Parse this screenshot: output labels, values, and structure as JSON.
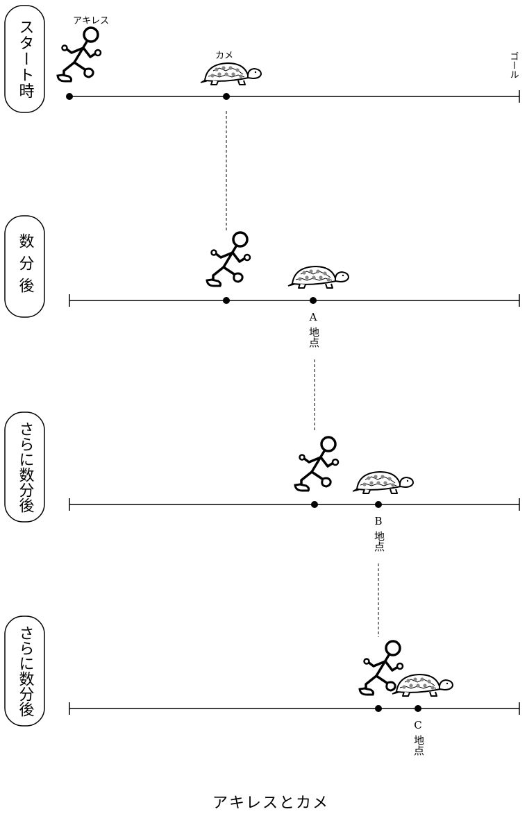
{
  "labels": {
    "achilles": "アキレス",
    "tortoise": "カメ",
    "goal": "ゴール",
    "caption": "アキレスとカメ"
  },
  "stages": [
    {
      "phase": "スタート時",
      "point_letter": "",
      "point_word": ""
    },
    {
      "phase": "数分後",
      "point_letter": "A",
      "point_word": "地点"
    },
    {
      "phase": "さらに数分後",
      "point_letter": "B",
      "point_word": "地点"
    },
    {
      "phase": "さらに数分後",
      "point_letter": "C",
      "point_word": "地点"
    }
  ]
}
